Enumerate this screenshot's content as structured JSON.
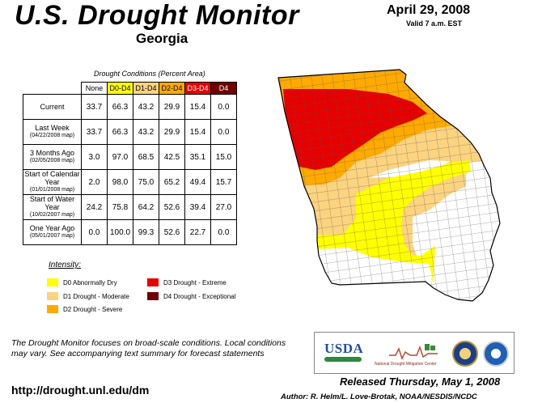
{
  "header": {
    "title": "U.S. Drought Monitor",
    "region": "Georgia",
    "date": "April 29, 2008",
    "valid": "Valid 7 a.m. EST"
  },
  "table": {
    "caption": "Drought Conditions (Percent Area)",
    "columns": [
      "None",
      "D0-D4",
      "D1-D4",
      "D2-D4",
      "D3-D4",
      "D4"
    ],
    "rows": [
      {
        "label": "Current",
        "sub": "",
        "values": [
          "33.7",
          "66.3",
          "43.2",
          "29.9",
          "15.4",
          "0.0"
        ]
      },
      {
        "label": "Last Week",
        "sub": "(04/22/2008 map)",
        "values": [
          "33.7",
          "66.3",
          "43.2",
          "29.9",
          "15.4",
          "0.0"
        ]
      },
      {
        "label": "3 Months Ago",
        "sub": "(02/05/2008 map)",
        "values": [
          "3.0",
          "97.0",
          "68.5",
          "42.5",
          "35.1",
          "15.0"
        ]
      },
      {
        "label": "Start of Calendar Year",
        "sub": "(01/01/2008 map)",
        "values": [
          "2.0",
          "98.0",
          "75.0",
          "65.2",
          "49.4",
          "15.7"
        ]
      },
      {
        "label": "Start of Water Year",
        "sub": "(10/02/2007 map)",
        "values": [
          "24.2",
          "75.8",
          "64.2",
          "52.6",
          "39.4",
          "27.0"
        ]
      },
      {
        "label": "One Year Ago",
        "sub": "(05/01/2007 map)",
        "values": [
          "0.0",
          "100.0",
          "99.3",
          "52.6",
          "22.7",
          "0.0"
        ]
      }
    ]
  },
  "legend": {
    "title": "Intensity:",
    "items": [
      {
        "label": "D0 Abnormally Dry",
        "color": "#ffff00"
      },
      {
        "label": "D1 Drought - Moderate",
        "color": "#fcd37f"
      },
      {
        "label": "D2 Drought - Severe",
        "color": "#ffaa00"
      },
      {
        "label": "D3 Drought - Extreme",
        "color": "#e60000"
      },
      {
        "label": "D4 Drought - Exceptional",
        "color": "#730000"
      }
    ]
  },
  "footer": {
    "note": "The Drought Monitor focuses on broad-scale conditions. Local conditions may vary. See accompanying text summary for forecast statements",
    "url": "http://drought.unl.edu/dm",
    "released": "Released Thursday, May 1, 2008",
    "author": "Author: R. Helm/L. Love-Brotak, NOAA/NESDIS/NCDC"
  },
  "logos": {
    "usda": "USDA",
    "ndmc": "National Drought Mitigation Center"
  },
  "map": {
    "state": "Georgia",
    "zones": [
      {
        "category": "D3",
        "color": "#e60000"
      },
      {
        "category": "D2",
        "color": "#ffaa00"
      },
      {
        "category": "D1",
        "color": "#fcd37f"
      },
      {
        "category": "D0",
        "color": "#ffff00"
      },
      {
        "category": "None",
        "color": "#ffffff"
      }
    ]
  }
}
